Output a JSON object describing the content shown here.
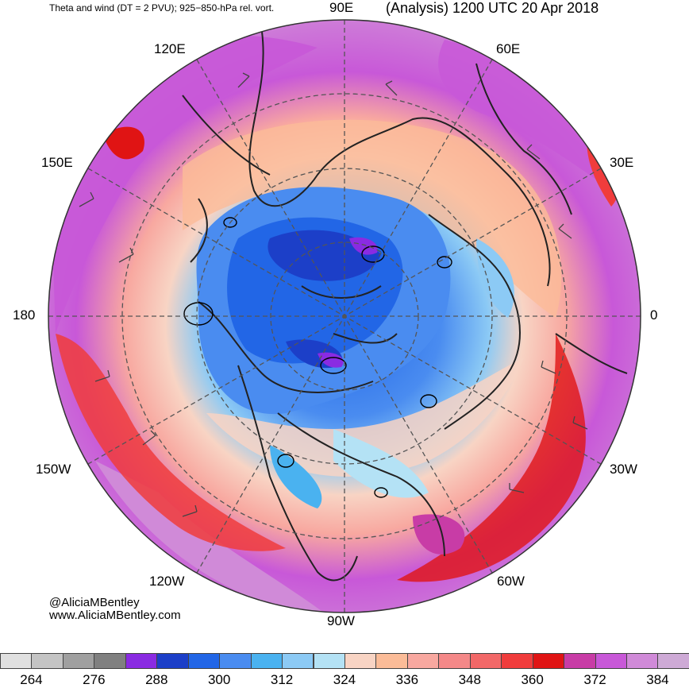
{
  "header": {
    "left_title": "Theta and wind (DT = 2 PVU); 925−850-hPa rel. vort.",
    "right_title": "(Analysis) 1200 UTC 20 Apr 2018"
  },
  "longitude_labels": {
    "lon_90e": "90E",
    "lon_120e": "120E",
    "lon_60e": "60E",
    "lon_150e": "150E",
    "lon_30e": "30E",
    "lon_180": "180",
    "lon_0": "0",
    "lon_150w": "150W",
    "lon_30w": "30W",
    "lon_120w": "120W",
    "lon_60w": "60W",
    "lon_90w": "90W"
  },
  "credits": {
    "handle": "@AliciaMBentley",
    "website": "www.AliciaMBentley.com"
  },
  "colorbar": {
    "colors": [
      "#e0e0e0",
      "#c4c4c4",
      "#a0a0a0",
      "#808080",
      "#8a2be2",
      "#1c3fc8",
      "#2266e6",
      "#4a8cf0",
      "#4ab2f0",
      "#8ccaf5",
      "#b4e2f5",
      "#f8d4c4",
      "#fbbc98",
      "#f8a8a0",
      "#f48888",
      "#f26868",
      "#f03c3c",
      "#e01414",
      "#c83ca6",
      "#c858d8",
      "#d08ad8",
      "#ceaad6"
    ],
    "tick_labels": [
      "264",
      "276",
      "288",
      "300",
      "312",
      "324",
      "336",
      "348",
      "360",
      "372",
      "384"
    ]
  }
}
